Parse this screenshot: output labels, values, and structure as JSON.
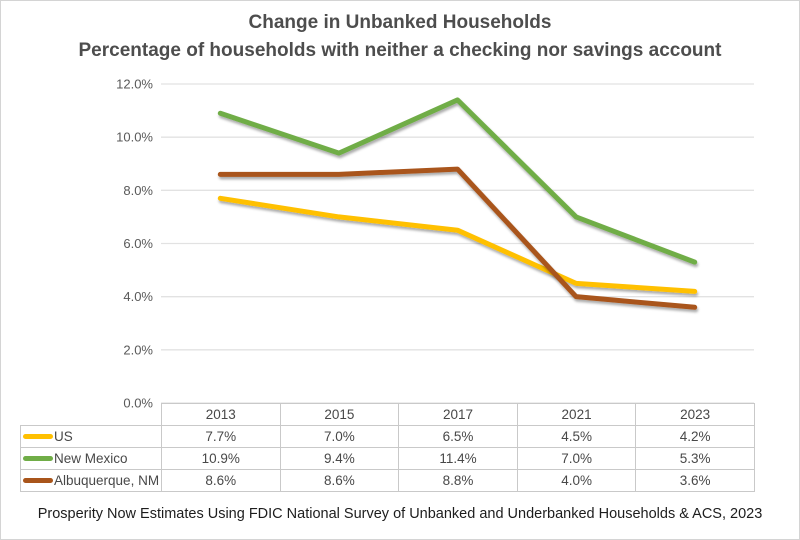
{
  "title": {
    "line1": "Change in Unbanked Households",
    "line2": "Percentage of households with neither a checking nor savings account"
  },
  "source_note": "Prosperity Now Estimates Using FDIC National Survey of Unbanked and Underbanked Households & ACS, 2023",
  "chart_data": {
    "type": "line",
    "categories": [
      "2013",
      "2015",
      "2017",
      "2021",
      "2023"
    ],
    "series": [
      {
        "name": "US",
        "color": "#FFC000",
        "values": [
          7.7,
          7.0,
          6.5,
          4.5,
          4.2
        ]
      },
      {
        "name": "New Mexico",
        "color": "#70AD47",
        "values": [
          10.9,
          9.4,
          11.4,
          7.0,
          5.3
        ]
      },
      {
        "name": "Albuquerque, NM",
        "color": "#A9551B",
        "values": [
          8.6,
          8.6,
          8.8,
          4.0,
          3.6
        ]
      }
    ],
    "ylim": [
      0,
      12
    ],
    "ytick_step": 2,
    "ytick_labels": [
      "0.0%",
      "2.0%",
      "4.0%",
      "6.0%",
      "8.0%",
      "10.0%",
      "12.0%"
    ],
    "value_suffix": "%",
    "grid": true,
    "legend_position": "table-left",
    "xlabel": "",
    "ylabel": ""
  }
}
